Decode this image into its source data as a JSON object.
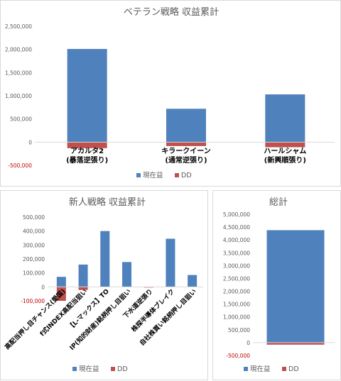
{
  "colors": {
    "current_profit": "#4f81bd",
    "dd": "#c0504d"
  },
  "chart_data": [
    {
      "type": "bar",
      "stacked": true,
      "title": "ベテラン戦略 収益累計",
      "categories": [
        "アカルタ2\n(暴落逆張り)",
        "キラークイーン\n(通常逆張り)",
        "ハールシャム\n(新興順張り)"
      ],
      "series": [
        {
          "name": "現在益",
          "values": [
            2010000,
            720000,
            1030000
          ]
        },
        {
          "name": "DD",
          "values": [
            -130000,
            -85000,
            -110000
          ]
        }
      ],
      "ylim": [
        -500000,
        2500000
      ],
      "yticks": [
        "2,500,000",
        "2,000,000",
        "1,500,000",
        "1,000,000",
        "500,000",
        "0",
        "-500,000"
      ],
      "grid": false,
      "legend": "bottom"
    },
    {
      "type": "bar",
      "stacked": true,
      "title": "新人戦略 収益累計",
      "categories": [
        "高配当押し目チャンス(愛国)",
        "f式INDEX高配当狙い",
        "【L-マックス】TO",
        "IP(知的財産)銘柄押し目狙い",
        "下水道逆張り",
        "株探半導体ブレイク",
        "自社株買い銘柄押し目狙い"
      ],
      "series": [
        {
          "name": "現在益",
          "values": [
            72000,
            160000,
            400000,
            178000,
            0,
            345000,
            85000
          ]
        },
        {
          "name": "DD",
          "values": [
            -100000,
            -22000,
            0,
            0,
            -5000,
            0,
            0
          ]
        }
      ],
      "ylim": [
        -100000,
        500000
      ],
      "yticks": [
        "500,000",
        "400,000",
        "300,000",
        "200,000",
        "100,000",
        "0",
        "-100,000"
      ],
      "grid": false,
      "legend": "bottom"
    },
    {
      "type": "bar",
      "stacked": true,
      "title": "総計",
      "categories": [
        ""
      ],
      "series": [
        {
          "name": "現在益",
          "values": [
            4380000
          ]
        },
        {
          "name": "DD",
          "values": [
            -80000
          ]
        }
      ],
      "ylim": [
        -500000,
        5000000
      ],
      "yticks": [
        "5,000,000",
        "4,500,000",
        "4,000,000",
        "3,500,000",
        "3,000,000",
        "2,500,000",
        "2,000,000",
        "1,500,000",
        "1,000,000",
        "500,000",
        "0",
        "-500,000"
      ],
      "grid": false,
      "legend": "bottom"
    }
  ]
}
